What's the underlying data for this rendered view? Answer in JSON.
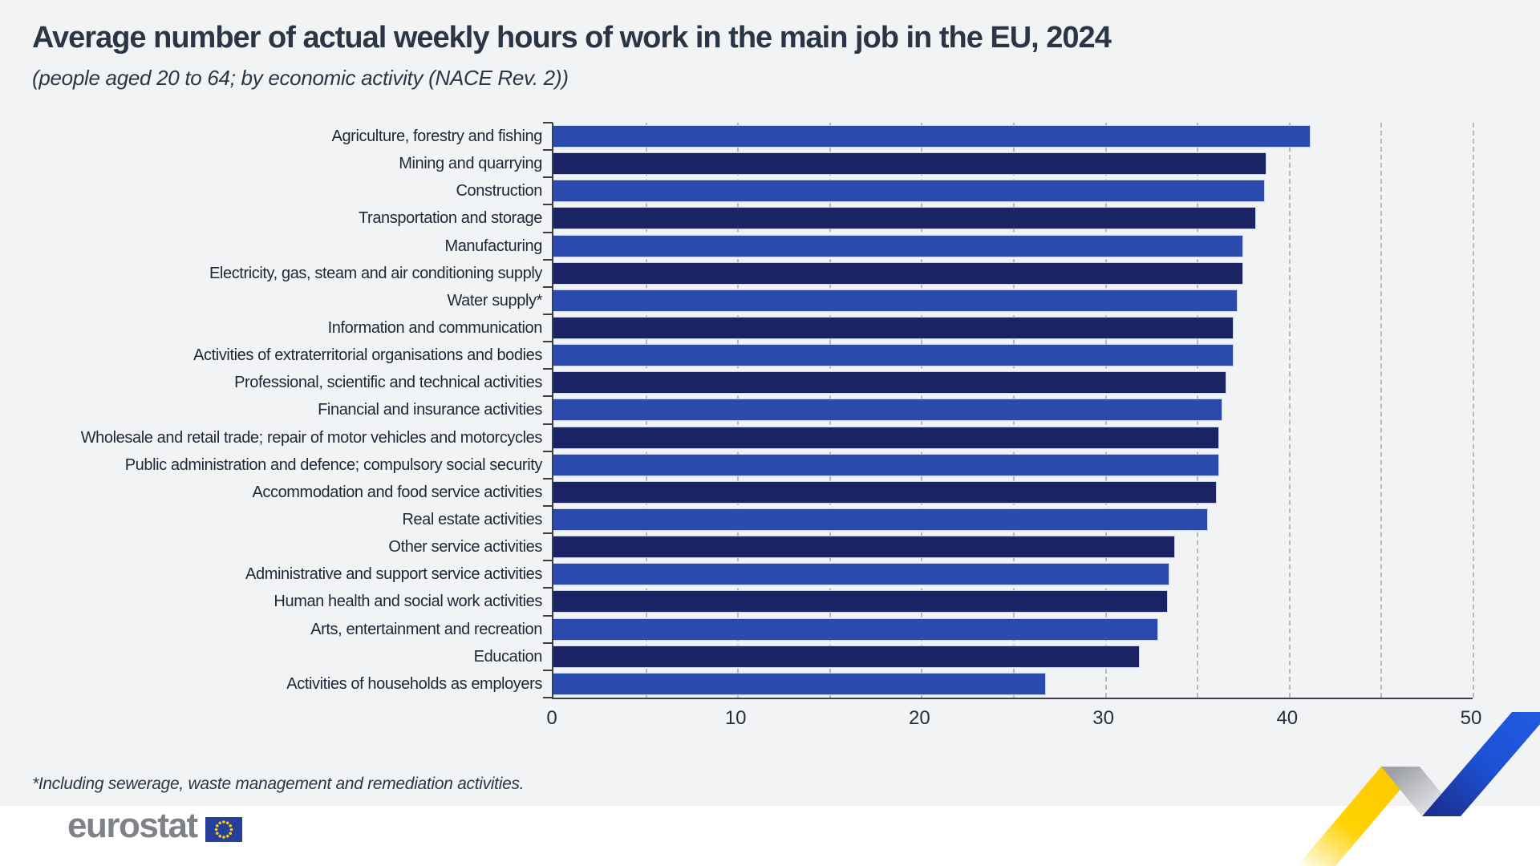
{
  "header": {
    "title": "Average number of actual weekly hours of work in the main job in the EU, 2024",
    "subtitle": "(people aged 20 to 64; by economic activity (NACE Rev. 2))"
  },
  "chart_data": {
    "type": "bar",
    "orientation": "horizontal",
    "title": "Average number of actual weekly hours of work in the main job in the EU, 2024",
    "subtitle": "(people aged 20 to 64; by economic activity (NACE Rev. 2))",
    "categories": [
      "Agriculture, forestry and fishing",
      "Mining and quarrying",
      "Construction",
      "Transportation and storage",
      "Manufacturing",
      "Electricity, gas, steam and air conditioning supply",
      "Water supply*",
      "Information and communication",
      "Activities of extraterritorial organisations and bodies",
      "Professional, scientific and technical activities",
      "Financial and insurance activities",
      "Wholesale and retail trade; repair of motor vehicles and motorcycles",
      "Public administration and defence; compulsory social security",
      "Accommodation and food service activities",
      "Real estate activities",
      "Other service activities",
      "Administrative and support service activities",
      "Human health and social work activities",
      "Arts, entertainment and recreation",
      "Education",
      "Activities of households as employers"
    ],
    "values": [
      41.2,
      38.8,
      38.7,
      38.2,
      37.5,
      37.5,
      37.2,
      37.0,
      37.0,
      36.6,
      36.4,
      36.2,
      36.2,
      36.1,
      35.6,
      33.8,
      33.5,
      33.4,
      32.9,
      31.9,
      26.8
    ],
    "xlabel": "",
    "ylabel": "",
    "xlim": [
      0,
      50
    ],
    "x_ticks": [
      0,
      10,
      20,
      30,
      40,
      50
    ],
    "gridline_step": 5,
    "grid": "vertical-dashed",
    "legend": "none"
  },
  "footnote": "*Including sewerage, waste management and remediation activities.",
  "logo": {
    "text": "eurostat"
  },
  "colors": {
    "background": "#f2f3f4",
    "footer_bg": "#ffffff",
    "bar_odd": "#2b4aad",
    "bar_even": "#1a2364",
    "bar_border": "#c9d3ea",
    "grid": "#b7b9bd",
    "axis": "#3c4046",
    "text": "#1d2737",
    "logo_gray": "#7f8389",
    "flag_blue": "#26409a",
    "star_yellow": "#ffcc00",
    "ribbon_yellow": "#ffd200",
    "ribbon_silver": "#b9bbc1",
    "ribbon_blue": "#1d52d5"
  }
}
